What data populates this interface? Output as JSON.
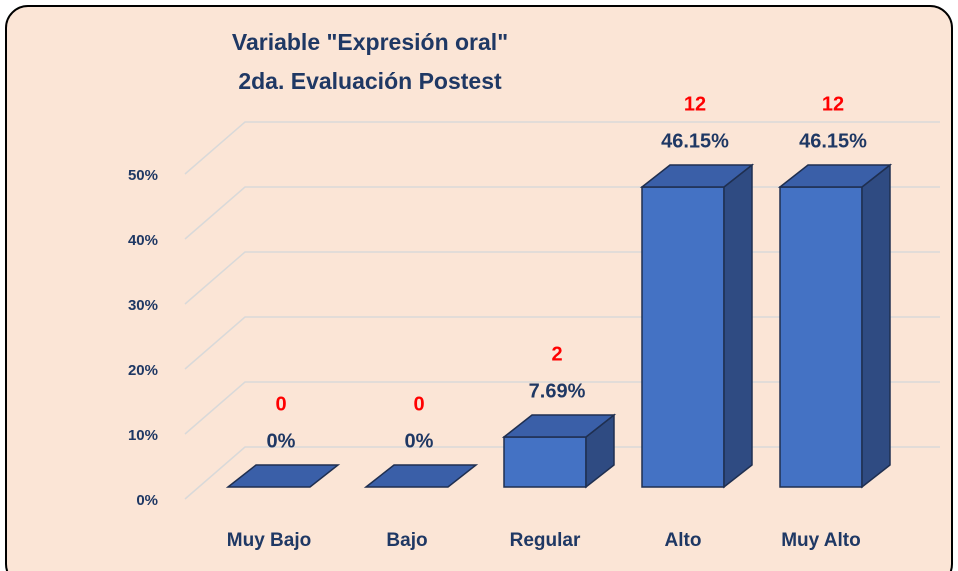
{
  "chart_data": {
    "type": "bar3d",
    "title": "Variable \"Expresión oral\"",
    "subtitle": "2da. Evaluación Postest",
    "categories": [
      "Muy Bajo",
      "Bajo",
      "Regular",
      "Alto",
      "Muy Alto"
    ],
    "values": [
      0,
      0,
      7.69,
      46.15,
      46.15
    ],
    "value_labels": [
      "0%",
      "0%",
      "7.69%",
      "46.15%",
      "46.15%"
    ],
    "counts": [
      0,
      0,
      2,
      12,
      12
    ],
    "color": "#4472c4",
    "count_color": "#ff0000",
    "ylim": [
      0,
      50
    ],
    "yticks": [
      {
        "value": 0,
        "label": "0%"
      },
      {
        "value": 10,
        "label": "10%"
      },
      {
        "value": 20,
        "label": "20%"
      },
      {
        "value": 30,
        "label": "30%"
      },
      {
        "value": 40,
        "label": "40%"
      },
      {
        "value": 50,
        "label": "50%"
      }
    ],
    "grid": true
  }
}
